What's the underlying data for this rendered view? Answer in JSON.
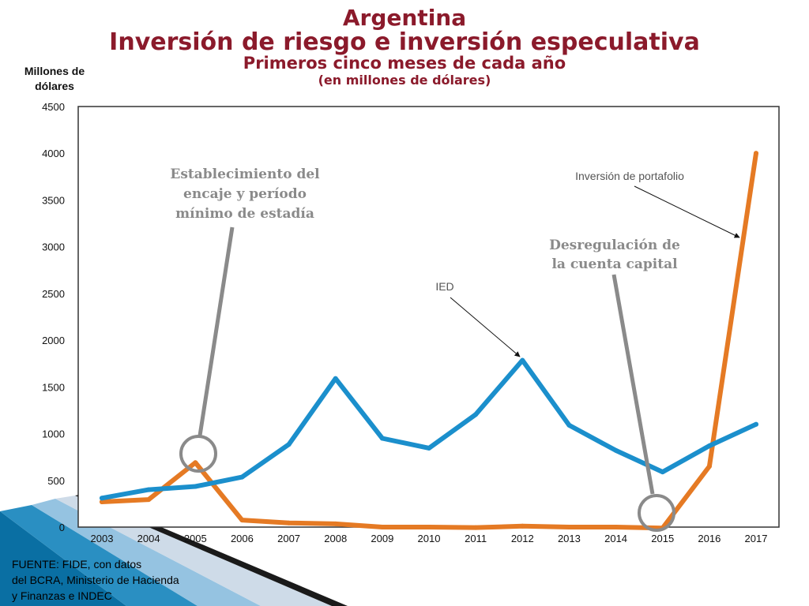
{
  "header": {
    "title": "Argentina",
    "subtitle": "Inversión de riesgo e inversión especulativa",
    "period": "Primeros cinco meses de cada año",
    "units": "(en millones de dólares)"
  },
  "source": {
    "lines": [
      "FUENTE: FIDE, con datos",
      "del BCRA, Ministerio de Hacienda",
      "y Finanzas e INDEC"
    ]
  },
  "chart_data": {
    "type": "line",
    "ylabel": "Millones de dólares",
    "ylabel_lines": [
      "Millones de",
      "dólares"
    ],
    "xlabel": "",
    "ylim": [
      0,
      4500
    ],
    "yticks": [
      0,
      500,
      1000,
      1500,
      2000,
      2500,
      3000,
      3500,
      4000,
      4500
    ],
    "x": [
      "2003",
      "2004",
      "2005",
      "2006",
      "2007",
      "2008",
      "2009",
      "2010",
      "2011",
      "2012",
      "2013",
      "2014",
      "2015",
      "2016",
      "2017"
    ],
    "grid": false,
    "series": [
      {
        "name": "IED",
        "color": "#1b8fcc",
        "values": [
          310,
          400,
          435,
          535,
          885,
          1590,
          950,
          845,
          1205,
          1785,
          1090,
          820,
          590,
          870,
          1100
        ]
      },
      {
        "name": "Inversión de portafolio",
        "color": "#e57a24",
        "values": [
          270,
          295,
          690,
          75,
          45,
          35,
          0,
          0,
          -5,
          10,
          0,
          0,
          -10,
          650,
          4000
        ]
      }
    ],
    "annotations": [
      {
        "text": "Establecimiento del encaje y período mínimo de estadía",
        "lines": [
          "Establecimiento del",
          "encaje y período",
          "mínimo de estadía"
        ],
        "year": "2005",
        "value": 750,
        "color": "#8a8a8a"
      },
      {
        "text": "Desregulación de la cuenta capital",
        "lines": [
          "Desregulación de",
          "la cuenta capital"
        ],
        "year": "2015",
        "value": 130,
        "color": "#8a8a8a"
      }
    ]
  }
}
